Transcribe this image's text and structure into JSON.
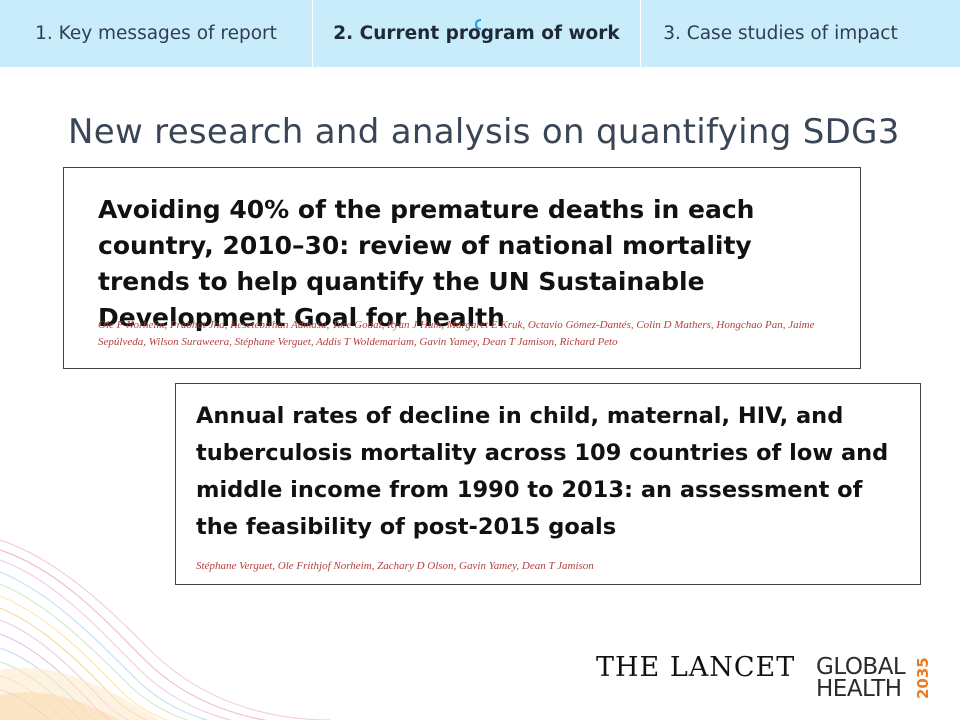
{
  "nav": {
    "tabs": [
      {
        "label": "1. Key messages of report",
        "active": false
      },
      {
        "label": "2. Current program of work",
        "active": true
      },
      {
        "label": "3. Case studies of impact",
        "active": false
      }
    ]
  },
  "slide": {
    "title": "New research and analysis on quantifying SDG3"
  },
  "papers": [
    {
      "title": "Avoiding 40% of the premature deaths in each country, 2010–30: review of national mortality trends to help quantify the UN Sustainable Development Goal for health",
      "authors": "Ole F Norheim, Prabhat Jha, Kesetebirhan Admasu, Tore Godal, Ryan J Hum, Margaret E Kruk, Octavio Gómez-Dantés, Colin D Mathers, Hongchao Pan, Jaime Sepúlveda, Wilson Suraweera, Stéphane Verguet, Addis T Woldemariam, Gavin Yamey, Dean T Jamison, Richard Peto"
    },
    {
      "title": "Annual rates of decline in child, maternal, HIV, and tuberculosis mortality across 109 countries of low and middle income from 1990 to 2013: an assessment of the feasibility of post-2015 goals",
      "authors": "Stéphane Verguet, Ole Frithjof Norheim, Zachary D Olson, Gavin Yamey, Dean T Jamison"
    }
  ],
  "logos": {
    "lancet": "THE LANCET",
    "gh_line1": "GLOBAL",
    "gh_line2": "HEALTH",
    "gh_year": "2035"
  },
  "colors": {
    "tabbar_bg": "#c9ecfb",
    "title_text": "#3a4656",
    "author_text": "#b0413e",
    "accent_orange": "#ef7b1e"
  }
}
